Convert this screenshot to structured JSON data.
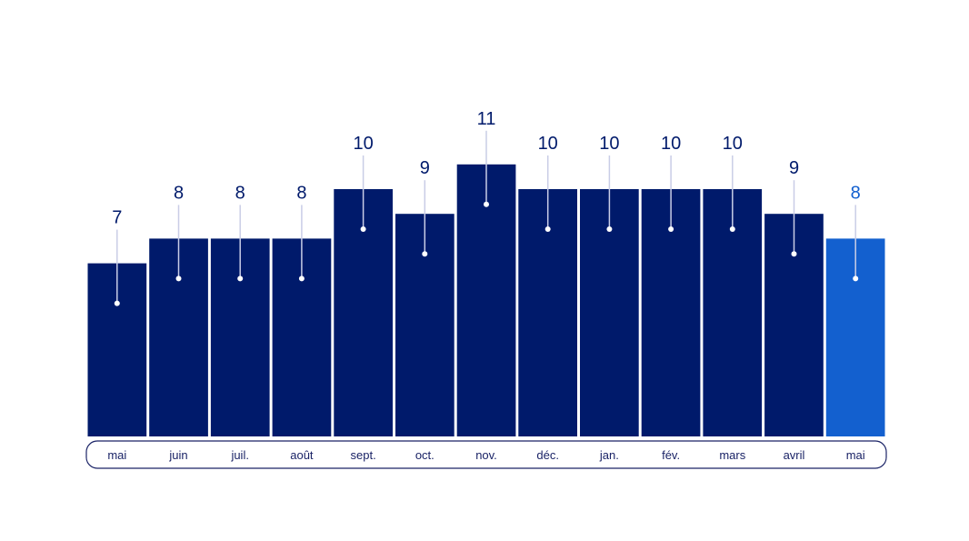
{
  "chart_data": {
    "type": "bar",
    "categories": [
      "mai",
      "juin",
      "juil.",
      "août",
      "sept.",
      "oct.",
      "nov.",
      "déc.",
      "jan.",
      "fév.",
      "mars",
      "avril",
      "mai"
    ],
    "values": [
      7,
      8,
      8,
      8,
      10,
      9,
      11,
      10,
      10,
      10,
      10,
      9,
      8
    ],
    "highlight_index": 12,
    "data_labels": true,
    "title": "",
    "xlabel": "",
    "ylabel": "",
    "ylim": [
      0,
      11
    ],
    "grid": false,
    "legend": "none",
    "colors": {
      "bar": "#001a6b",
      "highlight_bar": "#1360cf",
      "label": "#001a6b",
      "highlight_label": "#1360cf",
      "stem": "#c9cde6",
      "dot": "#ffffff",
      "axis_outline": "#1a2366"
    }
  }
}
